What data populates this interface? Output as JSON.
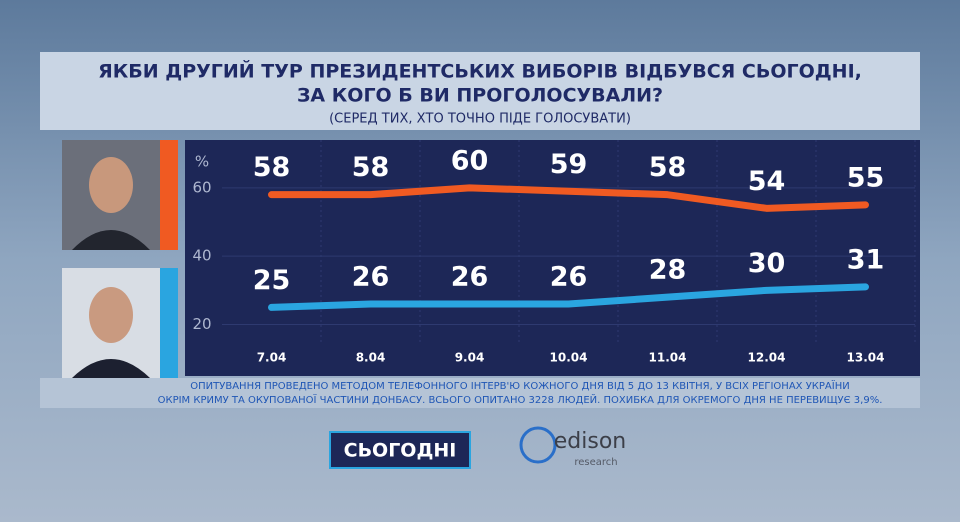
{
  "chart_data": {
    "type": "line",
    "title_lines": [
      "ЯКБИ ДРУГИЙ ТУР ПРЕЗИДЕНТСЬКИХ ВИБОРІВ ВІДБУВСЯ СЬОГОДНІ,",
      "ЗА КОГО Б ВИ ПРОГОЛОСУВАЛИ?"
    ],
    "subtitle": "(СЕРЕД ТИХ, ХТО ТОЧНО ПІДЕ ГОЛОСУВАТИ)",
    "y_label": "%",
    "categories": [
      "7.04",
      "8.04",
      "9.04",
      "10.04",
      "11.04",
      "12.04",
      "13.04"
    ],
    "series": [
      {
        "color": "#f05a22",
        "values": [
          58,
          58,
          60,
          59,
          58,
          54,
          55
        ]
      },
      {
        "color": "#2aa5e0",
        "values": [
          25,
          26,
          26,
          26,
          28,
          30,
          31
        ]
      }
    ],
    "ylim": [
      14,
      74
    ],
    "yticks": [
      20,
      40,
      60
    ],
    "grid": true,
    "note_lines": [
      "ОПИТУВАННЯ ПРОВЕДЕНО МЕТОДОМ ТЕЛЕФОННОГО ІНТЕРВ'Ю КОЖНОГО ДНЯ ВІД 5 ДО 13 КВІТНЯ, У ВСІХ РЕГІОНАХ УКРАЇНИ",
      "ОКРІМ КРИМУ ТА ОКУПОВАНОЇ ЧАСТИНИ ДОНБАСУ. ВСЬОГО ОПИТАНО 3228 ЛЮДЕЙ. ПОХИБКА ДЛЯ ОКРЕМОГО ДНЯ НЕ ПЕРЕВИЩУЄ 3,9%."
    ],
    "logos": {
      "channel": "СЬОГОДНІ",
      "pollster": "edison",
      "pollster_sub": "research"
    }
  }
}
